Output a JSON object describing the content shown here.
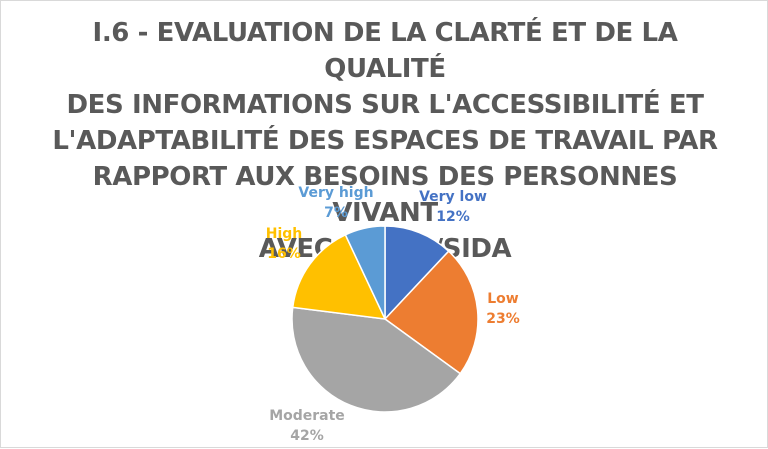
{
  "chart_data": {
    "type": "pie",
    "title": "I.6 - EVALUATION DE LA CLARTÉ ET DE LA QUALITÉ\nDES INFORMATIONS SUR L'ACCESSIBILITÉ ET\nL'ADAPTABILITÉ DES ESPACES DE TRAVAIL PAR\nRAPPORT AUX BESOINS DES PERSONNES VIVANT\nAVEC LE VIH/SIDA",
    "slices": [
      {
        "label": "Very low",
        "value": 12,
        "display": "12%",
        "color": "#4472C4"
      },
      {
        "label": "Low",
        "value": 23,
        "display": "23%",
        "color": "#ED7D31"
      },
      {
        "label": "Moderate",
        "value": 42,
        "display": "42%",
        "color": "#A5A5A5"
      },
      {
        "label": "High",
        "value": 16,
        "display": "16%",
        "color": "#FFC000"
      },
      {
        "label": "Very high",
        "value": 7,
        "display": "7%",
        "color": "#5B9BD5"
      }
    ],
    "legend": "none",
    "data_labels": "outside"
  }
}
